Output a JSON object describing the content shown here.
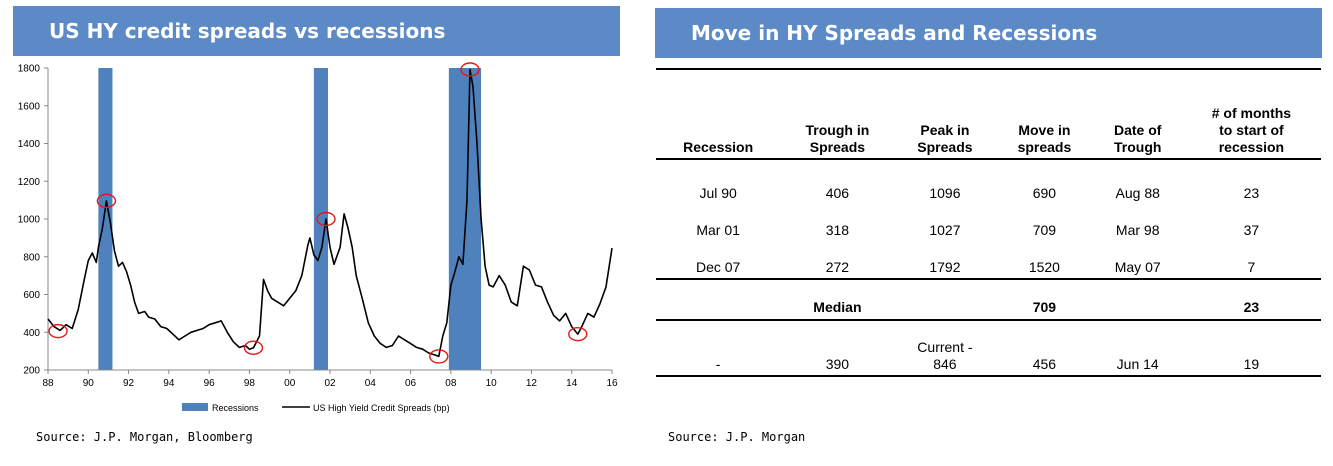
{
  "left_panel": {
    "title": "US HY credit spreads vs recessions",
    "source": "Source: J.P. Morgan, Bloomberg"
  },
  "right_panel": {
    "title": "Move in HY Spreads and Recessions",
    "source": "Source: J.P. Morgan"
  },
  "table": {
    "headers": [
      [
        "Recession"
      ],
      [
        "Trough in",
        "Spreads"
      ],
      [
        "Peak in",
        "Spreads"
      ],
      [
        "Move in",
        "spreads"
      ],
      [
        "Date of",
        "Trough"
      ],
      [
        "# of months",
        "to start of",
        "recession"
      ]
    ],
    "rows": [
      [
        "Jul 90",
        "406",
        "1096",
        "690",
        "Aug 88",
        "23"
      ],
      [
        "Mar 01",
        "318",
        "1027",
        "709",
        "Mar 98",
        "37"
      ],
      [
        "Dec 07",
        "272",
        "1792",
        "1520",
        "May 07",
        "7"
      ]
    ],
    "median": [
      "",
      "Median",
      "",
      "709",
      "",
      "23"
    ],
    "current": [
      "-",
      "390",
      "Current -\n846",
      "456",
      "Jun 14",
      "19"
    ]
  },
  "colors": {
    "title_bar": "#5b8ac6",
    "recession_bar": "#4f81bd",
    "line": "#000000",
    "circle": "#e01a1a"
  },
  "chart_data": {
    "type": "line",
    "title": "US HY credit spreads vs recessions",
    "ylim": [
      200,
      1800
    ],
    "yticks": [
      200,
      400,
      600,
      800,
      1000,
      1200,
      1400,
      1600,
      1800
    ],
    "xlim": [
      1988,
      2016
    ],
    "xticks": [
      "88",
      "90",
      "92",
      "94",
      "96",
      "98",
      "00",
      "02",
      "04",
      "06",
      "08",
      "10",
      "12",
      "14",
      "16"
    ],
    "legend": {
      "position": "bottom",
      "items": [
        "Recessions",
        "US High Yield Credit Spreads (bp)"
      ]
    },
    "recessions": [
      {
        "start": 1990.5,
        "end": 1991.2
      },
      {
        "start": 2001.2,
        "end": 2001.9
      },
      {
        "start": 2007.9,
        "end": 2009.5
      }
    ],
    "series": [
      {
        "name": "US High Yield Credit Spreads (bp)",
        "points": [
          [
            1988.0,
            470
          ],
          [
            1988.3,
            430
          ],
          [
            1988.6,
            410
          ],
          [
            1988.9,
            440
          ],
          [
            1989.2,
            420
          ],
          [
            1989.5,
            520
          ],
          [
            1989.8,
            680
          ],
          [
            1990.0,
            780
          ],
          [
            1990.2,
            820
          ],
          [
            1990.4,
            770
          ],
          [
            1990.5,
            850
          ],
          [
            1990.7,
            950
          ],
          [
            1990.9,
            1096
          ],
          [
            1991.1,
            980
          ],
          [
            1991.3,
            830
          ],
          [
            1991.5,
            750
          ],
          [
            1991.7,
            770
          ],
          [
            1991.9,
            720
          ],
          [
            1992.1,
            650
          ],
          [
            1992.3,
            560
          ],
          [
            1992.5,
            500
          ],
          [
            1992.8,
            510
          ],
          [
            1993.0,
            480
          ],
          [
            1993.3,
            470
          ],
          [
            1993.6,
            430
          ],
          [
            1993.9,
            420
          ],
          [
            1994.2,
            390
          ],
          [
            1994.5,
            360
          ],
          [
            1994.8,
            380
          ],
          [
            1995.1,
            400
          ],
          [
            1995.4,
            410
          ],
          [
            1995.7,
            420
          ],
          [
            1996.0,
            440
          ],
          [
            1996.3,
            450
          ],
          [
            1996.6,
            460
          ],
          [
            1996.9,
            400
          ],
          [
            1997.2,
            350
          ],
          [
            1997.5,
            320
          ],
          [
            1997.8,
            330
          ],
          [
            1998.0,
            310
          ],
          [
            1998.2,
            318
          ],
          [
            1998.5,
            380
          ],
          [
            1998.7,
            680
          ],
          [
            1998.9,
            620
          ],
          [
            1999.1,
            580
          ],
          [
            1999.4,
            560
          ],
          [
            1999.7,
            540
          ],
          [
            2000.0,
            580
          ],
          [
            2000.3,
            620
          ],
          [
            2000.6,
            700
          ],
          [
            2000.9,
            860
          ],
          [
            2001.0,
            900
          ],
          [
            2001.2,
            810
          ],
          [
            2001.4,
            780
          ],
          [
            2001.6,
            850
          ],
          [
            2001.8,
            1000
          ],
          [
            2002.0,
            850
          ],
          [
            2002.2,
            760
          ],
          [
            2002.5,
            850
          ],
          [
            2002.7,
            1027
          ],
          [
            2002.9,
            950
          ],
          [
            2003.1,
            850
          ],
          [
            2003.3,
            700
          ],
          [
            2003.6,
            580
          ],
          [
            2003.9,
            450
          ],
          [
            2004.2,
            380
          ],
          [
            2004.5,
            340
          ],
          [
            2004.8,
            320
          ],
          [
            2005.1,
            330
          ],
          [
            2005.4,
            380
          ],
          [
            2005.7,
            360
          ],
          [
            2006.0,
            340
          ],
          [
            2006.3,
            320
          ],
          [
            2006.6,
            310
          ],
          [
            2006.9,
            290
          ],
          [
            2007.2,
            280
          ],
          [
            2007.4,
            272
          ],
          [
            2007.6,
            380
          ],
          [
            2007.8,
            450
          ],
          [
            2008.0,
            650
          ],
          [
            2008.2,
            720
          ],
          [
            2008.4,
            800
          ],
          [
            2008.6,
            760
          ],
          [
            2008.8,
            1100
          ],
          [
            2008.95,
            1792
          ],
          [
            2009.1,
            1700
          ],
          [
            2009.3,
            1400
          ],
          [
            2009.5,
            1000
          ],
          [
            2009.7,
            750
          ],
          [
            2009.9,
            650
          ],
          [
            2010.1,
            640
          ],
          [
            2010.4,
            700
          ],
          [
            2010.7,
            650
          ],
          [
            2011.0,
            560
          ],
          [
            2011.3,
            540
          ],
          [
            2011.6,
            750
          ],
          [
            2011.9,
            730
          ],
          [
            2012.2,
            650
          ],
          [
            2012.5,
            640
          ],
          [
            2012.8,
            560
          ],
          [
            2013.1,
            490
          ],
          [
            2013.4,
            460
          ],
          [
            2013.7,
            500
          ],
          [
            2014.0,
            430
          ],
          [
            2014.3,
            390
          ],
          [
            2014.5,
            430
          ],
          [
            2014.8,
            500
          ],
          [
            2015.1,
            480
          ],
          [
            2015.4,
            550
          ],
          [
            2015.7,
            640
          ],
          [
            2016.0,
            846
          ]
        ]
      }
    ],
    "highlighted_points": [
      [
        1988.5,
        406
      ],
      [
        1990.9,
        1096
      ],
      [
        1998.2,
        318
      ],
      [
        2001.8,
        1000
      ],
      [
        2007.4,
        272
      ],
      [
        2008.95,
        1792
      ],
      [
        2014.3,
        390
      ]
    ]
  }
}
